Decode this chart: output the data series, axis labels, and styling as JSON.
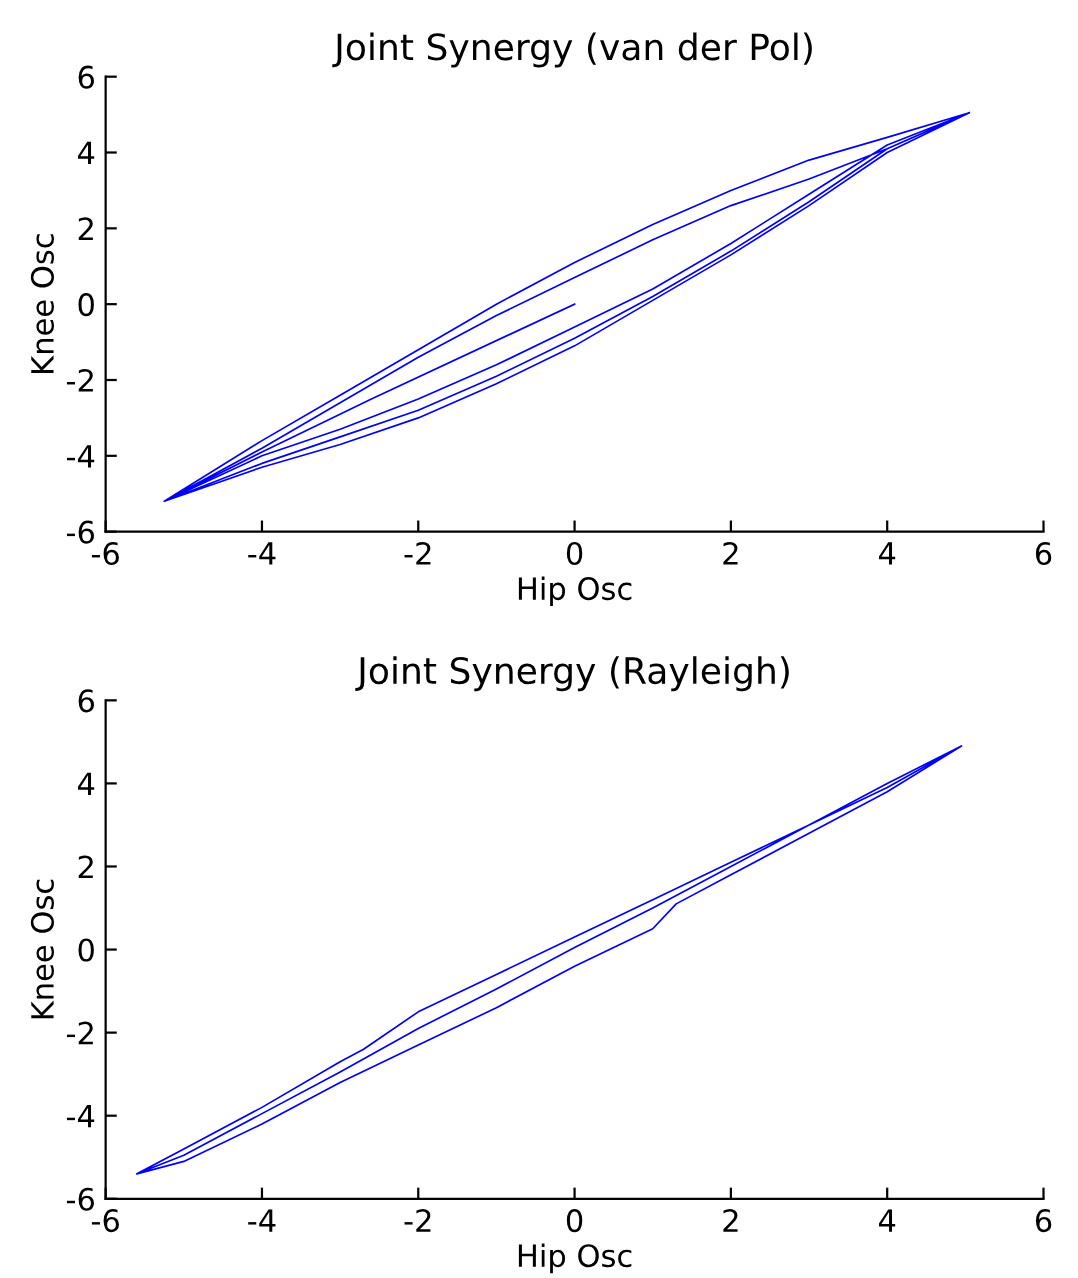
{
  "chart_data": [
    {
      "type": "line",
      "title": "Joint Synergy (van der Pol)",
      "xlabel": "Hip Osc",
      "ylabel": "Knee Osc",
      "xlim": [
        -6,
        6
      ],
      "ylim": [
        -6,
        6
      ],
      "xticks": [
        -6,
        -4,
        -2,
        0,
        2,
        4,
        6
      ],
      "yticks": [
        -6,
        -4,
        -2,
        0,
        2,
        4,
        6
      ],
      "grid": false,
      "legend": false,
      "series": [
        {
          "color": "#0000ff",
          "x": [
            0,
            -2.6,
            -3.2,
            -4,
            -5.25,
            -4,
            -3,
            -2,
            -1,
            0,
            1,
            2,
            3,
            4,
            5.05,
            4,
            3,
            2,
            1,
            0,
            -1,
            -2,
            -3,
            -4,
            -5.25,
            -4,
            -3,
            -2,
            -1,
            0,
            1,
            2,
            3,
            4,
            5.05,
            4,
            3,
            2,
            1,
            0,
            -1,
            -2,
            -3,
            -4,
            -5.25,
            -4,
            -3,
            -2,
            -1,
            0,
            1,
            2,
            3,
            4,
            5.05
          ],
          "values": [
            0,
            -2.5,
            -3.1,
            -3.9,
            -5.2,
            -4.3,
            -3.7,
            -3.0,
            -2.1,
            -1.1,
            0.1,
            1.3,
            2.6,
            4.0,
            5.05,
            4.4,
            3.8,
            3.0,
            2.1,
            1.1,
            0.0,
            -1.2,
            -2.4,
            -3.6,
            -5.2,
            -4.0,
            -3.3,
            -2.5,
            -1.6,
            -0.6,
            0.4,
            1.6,
            2.9,
            4.2,
            5.05,
            4.1,
            3.3,
            2.6,
            1.7,
            0.7,
            -0.3,
            -1.4,
            -2.6,
            -3.8,
            -5.2,
            -4.2,
            -3.5,
            -2.8,
            -1.9,
            -0.9,
            0.2,
            1.4,
            2.7,
            4.1,
            5.05
          ]
        }
      ]
    },
    {
      "type": "line",
      "title": "Joint Synergy (Rayleigh)",
      "xlabel": "Hip Osc",
      "ylabel": "Knee Osc",
      "xlim": [
        -6,
        6
      ],
      "ylim": [
        -6,
        6
      ],
      "xticks": [
        -6,
        -4,
        -2,
        0,
        2,
        4,
        6
      ],
      "yticks": [
        -6,
        -4,
        -2,
        0,
        2,
        4,
        6
      ],
      "grid": false,
      "legend": false,
      "series": [
        {
          "color": "#0000ff",
          "x": [
            -5.6,
            -5,
            -4,
            -3,
            -2.7,
            -2,
            -1,
            0,
            1,
            2,
            3,
            4,
            4.95,
            4,
            3,
            2,
            1.3,
            1,
            0,
            -1,
            -2,
            -3,
            -4,
            -5,
            -5.6,
            -5,
            -4,
            -3,
            -2,
            -1,
            0,
            1,
            2,
            3,
            4,
            4.95
          ],
          "values": [
            -5.4,
            -4.8,
            -3.8,
            -2.7,
            -2.4,
            -1.5,
            -0.6,
            0.3,
            1.2,
            2.1,
            3.0,
            4.0,
            4.9,
            3.8,
            2.8,
            1.8,
            1.1,
            0.5,
            -0.4,
            -1.4,
            -2.3,
            -3.2,
            -4.2,
            -5.1,
            -5.4,
            -4.95,
            -3.95,
            -2.95,
            -1.9,
            -0.95,
            0.05,
            1.0,
            2.0,
            3.0,
            3.9,
            4.9
          ]
        }
      ]
    }
  ]
}
